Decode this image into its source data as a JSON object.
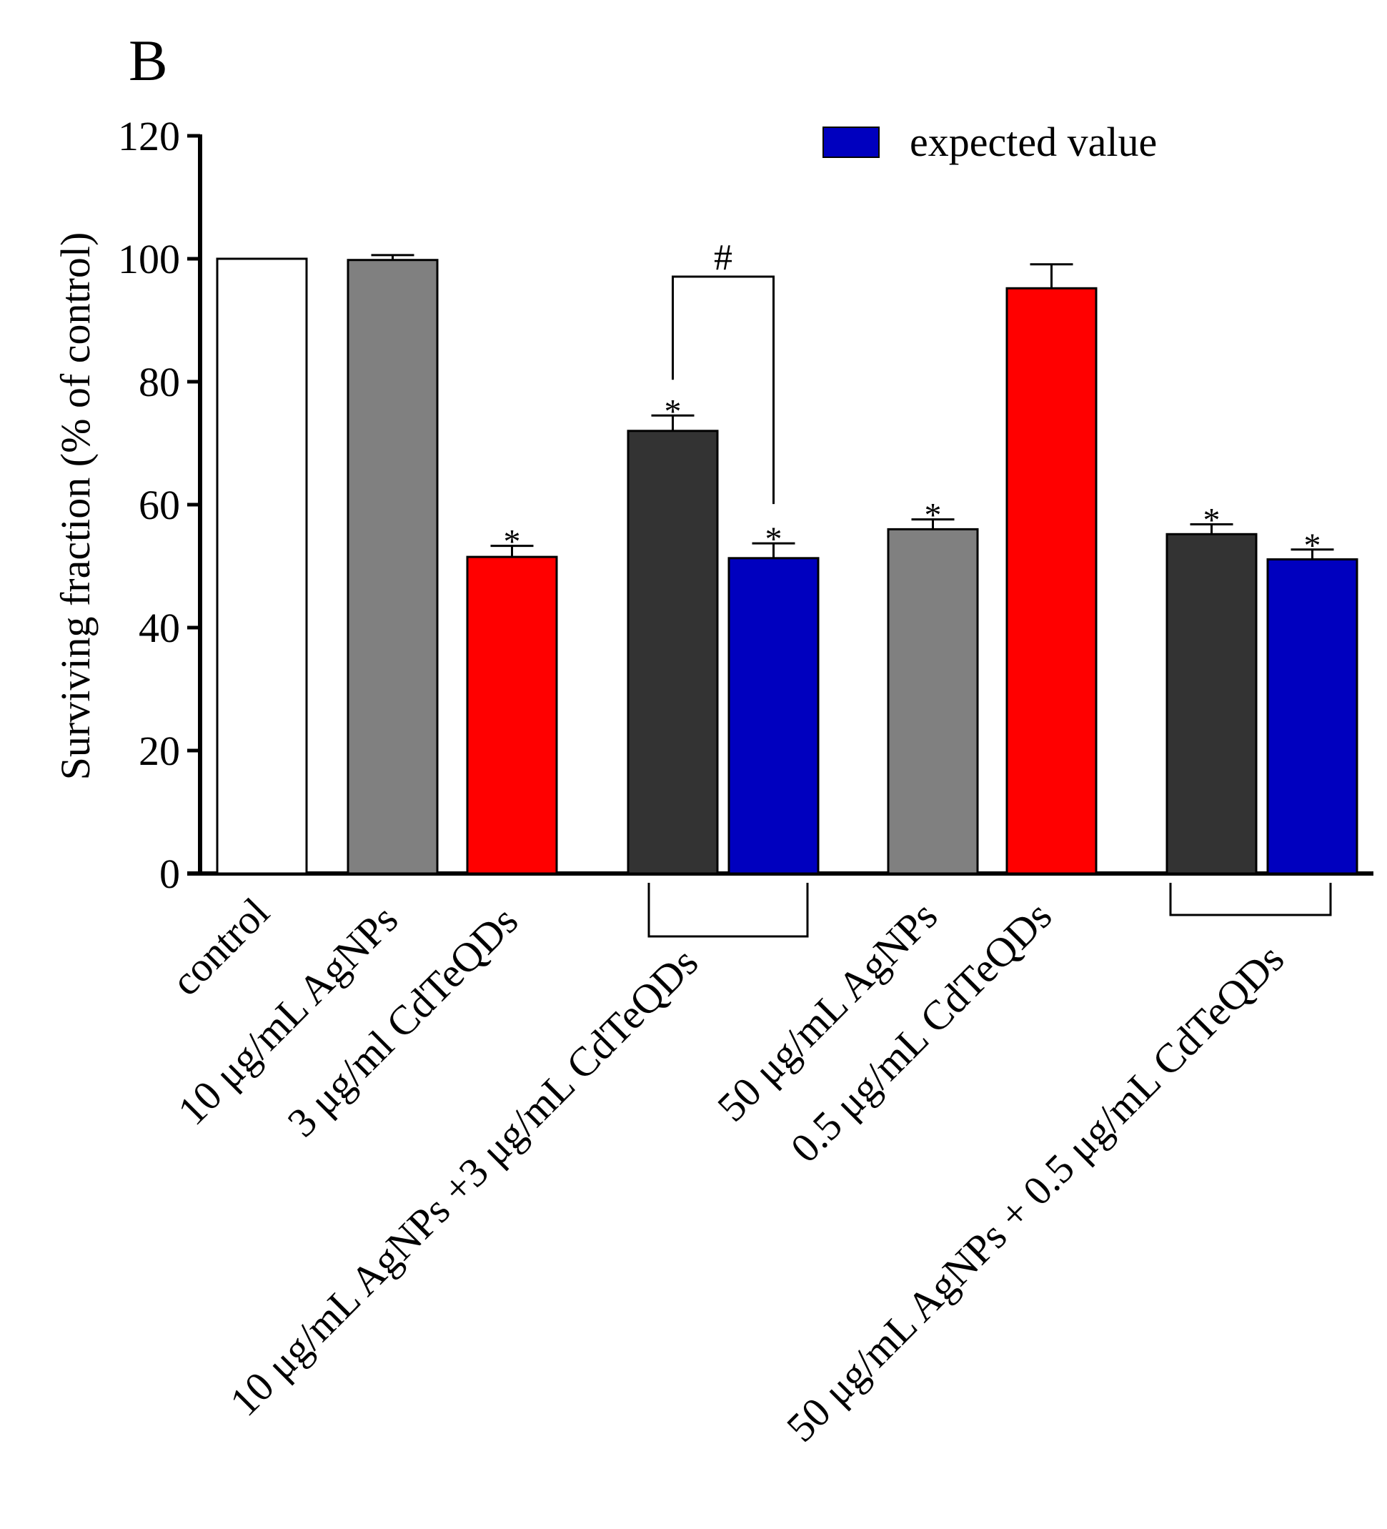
{
  "panel_label": "B",
  "chart_data": {
    "type": "bar",
    "ylabel": "Surviving fraction (% of control)",
    "ylim": [
      0,
      120
    ],
    "yticks": [
      0,
      20,
      40,
      60,
      80,
      100,
      120
    ],
    "legend": {
      "label": "expected value",
      "color": "#0000bf",
      "placement": "top-right"
    },
    "bars": [
      {
        "category": "control",
        "value": 100,
        "error": 0,
        "color": "#ffffff",
        "star": false,
        "expected": false
      },
      {
        "category": "10 μg/mL AgNPs",
        "value": 99.8,
        "error": 0.8,
        "color": "#808080",
        "star": false,
        "expected": false
      },
      {
        "category": "3 μg/ml CdTeQDs",
        "value": 51.5,
        "error": 1.8,
        "color": "#ff0000",
        "star": true,
        "expected": false
      },
      {
        "category": "10 μg/mL AgNPs +3 μg/mL CdTeQDs",
        "value": 72,
        "error": 2.5,
        "color": "#333333",
        "star": true,
        "expected": false
      },
      {
        "category": "",
        "value": 51.3,
        "error": 2.4,
        "color": "#0000bf",
        "star": true,
        "expected": true
      },
      {
        "category": "50 μg/mL AgNPs",
        "value": 56,
        "error": 1.6,
        "color": "#808080",
        "star": true,
        "expected": false
      },
      {
        "category": "0.5 μg/mL CdTeQDs",
        "value": 95.2,
        "error": 3.9,
        "color": "#ff0000",
        "star": false,
        "expected": false
      },
      {
        "category": "50 μg/mL AgNPs + 0.5 μg/mL CdTeQDs",
        "value": 55.2,
        "error": 1.6,
        "color": "#333333",
        "star": true,
        "expected": false
      },
      {
        "category": "",
        "value": 51.1,
        "error": 1.6,
        "color": "#0000bf",
        "star": true,
        "expected": true
      }
    ],
    "star_label": "*",
    "significance": [
      {
        "between": [
          3,
          4
        ],
        "label": "#"
      }
    ]
  }
}
